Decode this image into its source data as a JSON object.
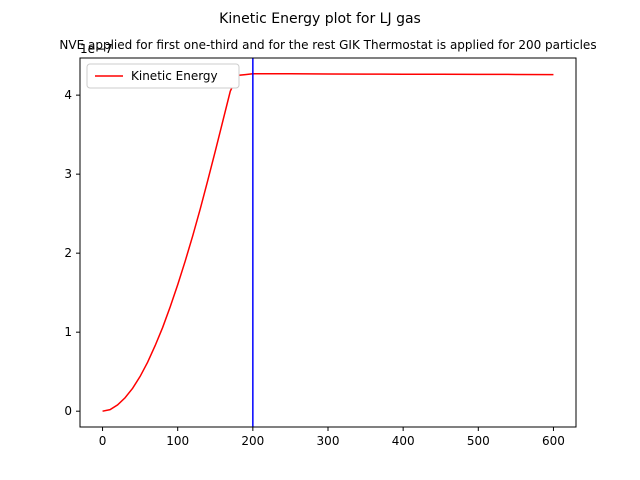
{
  "chart_data": {
    "type": "line",
    "title": "Kinetic Energy plot for LJ gas",
    "subtitle": "NVE applied for first one-third and for the rest GIK Thermostat is applied for 200 particles",
    "xlabel": "",
    "ylabel": "",
    "y_scale_label": "1e−7",
    "xlim": [
      -30,
      630
    ],
    "ylim": [
      -0.2,
      4.47
    ],
    "xticks": [
      0,
      100,
      200,
      300,
      400,
      500,
      600
    ],
    "yticks": [
      0,
      1,
      2,
      3,
      4
    ],
    "grid": false,
    "legend": {
      "position": "top-left",
      "entries": [
        "Kinetic Energy"
      ]
    },
    "series": [
      {
        "name": "Kinetic Energy",
        "color": "#ff0000",
        "x": [
          0,
          10,
          20,
          30,
          40,
          50,
          60,
          70,
          80,
          90,
          100,
          110,
          120,
          130,
          140,
          150,
          160,
          170,
          180,
          190,
          200,
          250,
          300,
          350,
          400,
          450,
          500,
          550,
          600
        ],
        "y": [
          0.0,
          0.02,
          0.08,
          0.17,
          0.29,
          0.44,
          0.62,
          0.83,
          1.06,
          1.32,
          1.6,
          1.9,
          2.22,
          2.56,
          2.92,
          3.29,
          3.67,
          4.05,
          4.25,
          4.26,
          4.27,
          4.27,
          4.268,
          4.266,
          4.265,
          4.264,
          4.263,
          4.262,
          4.26
        ]
      }
    ],
    "vline": {
      "x": 200,
      "color": "#0000ff"
    }
  }
}
